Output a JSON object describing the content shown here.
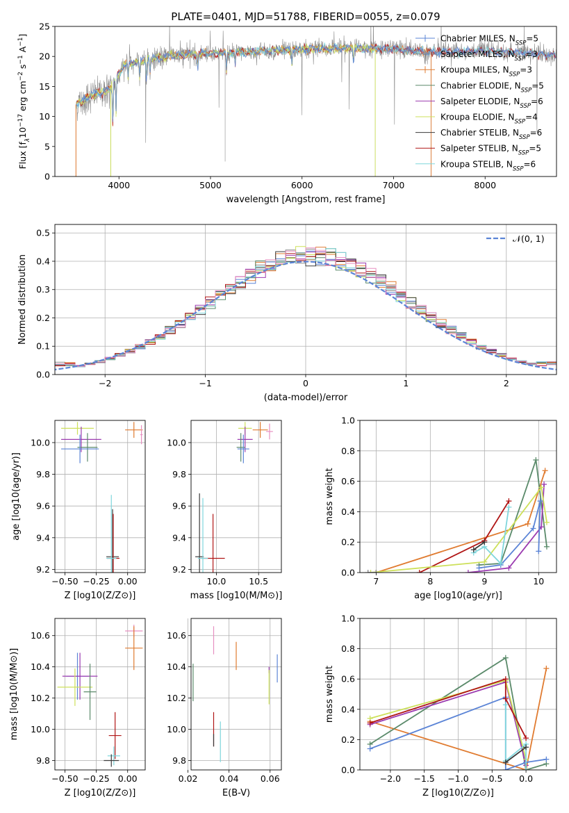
{
  "figure_title": "PLATE=0401, MJD=51788, FIBERID=0055, z=0.079",
  "colors": {
    "blue": "#5b84d6",
    "orange": "#e07b30",
    "gray": "#8a8a8a",
    "green": "#5a8a6a",
    "purple": "#9b3bb0",
    "lime": "#cde05a",
    "dark": "#3a3a3a",
    "red": "#b01515",
    "cyan": "#7fd6dc",
    "pink": "#e78fc0"
  },
  "chart_data": [
    {
      "id": "spectrum",
      "type": "line",
      "xlabel": "wavelength [Angstrom, rest frame]",
      "ylabel": "Flux [f",
      "ylabel_parts": [
        "Flux [f",
        "λ",
        "10",
        "−17",
        " erg cm",
        "−2",
        " s",
        "−1",
        " A",
        "−1",
        "]"
      ],
      "xlim": [
        3300,
        8780
      ],
      "ylim": [
        0,
        25
      ],
      "xticks": [
        4000,
        5000,
        6000,
        7000,
        8000
      ],
      "yticks": [
        0,
        5,
        10,
        15,
        20,
        25
      ],
      "continuum": [
        [
          3530,
          12.0
        ],
        [
          3700,
          13.5
        ],
        [
          3900,
          14.5
        ],
        [
          4050,
          18.5
        ],
        [
          4300,
          19.5
        ],
        [
          4600,
          20.2
        ],
        [
          5000,
          20.5
        ],
        [
          5500,
          20.8
        ],
        [
          6000,
          21.2
        ],
        [
          6500,
          21.4
        ],
        [
          7000,
          21.2
        ],
        [
          7400,
          20.7
        ],
        [
          7700,
          20.8
        ],
        [
          8000,
          20.9
        ],
        [
          8400,
          20.6
        ],
        [
          8780,
          20.2
        ]
      ],
      "absorption_lines": [
        [
          3933,
          7
        ],
        [
          3968,
          6
        ],
        [
          4101,
          2.5
        ],
        [
          4226,
          3
        ],
        [
          4300,
          4
        ],
        [
          4340,
          2.5
        ],
        [
          4861,
          2
        ],
        [
          5175,
          3.5
        ],
        [
          5270,
          2
        ],
        [
          5890,
          2.5
        ],
        [
          6563,
          2.5
        ]
      ],
      "legend": [
        {
          "label": "Chabrier MILES, N",
          "sub": "SSP",
          "suffix": "=5",
          "color": "blue"
        },
        {
          "label": "Salpeter MILES, N",
          "sub": "SSP",
          "suffix": "=3",
          "color": "gray"
        },
        {
          "label": "Kroupa MILES, N",
          "sub": "SSP",
          "suffix": "=3",
          "color": "orange"
        },
        {
          "label": "Chabrier ELODIE, N",
          "sub": "SSP",
          "suffix": "=5",
          "color": "green"
        },
        {
          "label": "Salpeter ELODIE, N",
          "sub": "SSP",
          "suffix": "=6",
          "color": "purple"
        },
        {
          "label": "Kroupa ELODIE, N",
          "sub": "SSP",
          "suffix": "=4",
          "color": "lime"
        },
        {
          "label": "Chabrier STELIB, N",
          "sub": "SSP",
          "suffix": "=6",
          "color": "dark"
        },
        {
          "label": "Salpeter STELIB, N",
          "sub": "SSP",
          "suffix": "=5",
          "color": "red"
        },
        {
          "label": "Kroupa STELIB, N",
          "sub": "SSP",
          "suffix": "=6",
          "color": "cyan"
        }
      ]
    },
    {
      "id": "residuals",
      "type": "histogram",
      "xlabel": "(data-model)/error",
      "ylabel": "Normed distribution",
      "xlim": [
        -2.5,
        2.5
      ],
      "ylim": [
        0,
        0.53
      ],
      "xticks": [
        -2,
        -1,
        0,
        1,
        2
      ],
      "yticks": [
        0.0,
        0.1,
        0.2,
        0.3,
        0.4,
        0.5
      ],
      "bin_width": 0.1,
      "reference_label": "𝒩(0, 1)",
      "reference_color": "blue",
      "series_colors": [
        "blue",
        "gray",
        "orange",
        "green",
        "purple",
        "lime",
        "dark",
        "red",
        "cyan",
        "pink"
      ]
    },
    {
      "id": "age_vs_Z",
      "type": "errorbar",
      "xlabel": "Z [log10(Z/Z⊙)]",
      "ylabel": "age  [log10(age/yr)]",
      "xlim": [
        -0.58,
        0.14
      ],
      "ylim": [
        9.18,
        10.14
      ],
      "xticks": [
        -0.5,
        -0.25,
        0.0
      ],
      "xticklabels": [
        "−0.50",
        "−0.25",
        "0.00"
      ],
      "yticks": [
        9.2,
        9.4,
        9.6,
        9.8,
        10.0
      ],
      "points": [
        {
          "x": -0.4,
          "y": 10.09,
          "xerr": 0.13,
          "yerr": 0.04,
          "color": "lime"
        },
        {
          "x": 0.05,
          "y": 10.08,
          "xerr": 0.07,
          "yerr": 0.05,
          "color": "orange"
        },
        {
          "x": 0.11,
          "y": 10.05,
          "xerr": 0.01,
          "yerr": 0.06,
          "color": "pink"
        },
        {
          "x": -0.37,
          "y": 10.02,
          "xerr": 0.16,
          "yerr": 0.08,
          "color": "purple"
        },
        {
          "x": -0.32,
          "y": 9.97,
          "xerr": 0.08,
          "yerr": 0.09,
          "color": "green"
        },
        {
          "x": -0.38,
          "y": 9.96,
          "xerr": 0.15,
          "yerr": 0.09,
          "color": "blue"
        },
        {
          "x": -0.12,
          "y": 9.28,
          "xerr": 0.05,
          "yerr": 0.3,
          "color": "dark"
        },
        {
          "x": -0.115,
          "y": 9.27,
          "xerr": 0.05,
          "yerr": 0.28,
          "color": "red"
        },
        {
          "x": -0.13,
          "y": 9.27,
          "xerr": 0.04,
          "yerr": 0.4,
          "color": "cyan"
        }
      ]
    },
    {
      "id": "age_vs_mass",
      "type": "errorbar",
      "xlabel": "mass [log10(M/M⊙)]",
      "ylabel": "",
      "xlim": [
        9.7,
        10.77
      ],
      "ylim": [
        9.18,
        10.14
      ],
      "xticks": [
        10.0,
        10.5
      ],
      "yticks": [
        9.2,
        9.4,
        9.6,
        9.8,
        10.0
      ],
      "points": [
        {
          "x": 10.34,
          "y": 10.09,
          "xerr": 0.08,
          "yerr": 0.04,
          "color": "lime"
        },
        {
          "x": 10.52,
          "y": 10.08,
          "xerr": 0.09,
          "yerr": 0.05,
          "color": "orange"
        },
        {
          "x": 10.63,
          "y": 10.07,
          "xerr": 0.04,
          "yerr": 0.05,
          "color": "pink"
        },
        {
          "x": 10.34,
          "y": 10.02,
          "xerr": 0.09,
          "yerr": 0.08,
          "color": "purple"
        },
        {
          "x": 10.29,
          "y": 9.97,
          "xerr": 0.05,
          "yerr": 0.09,
          "color": "green"
        },
        {
          "x": 10.32,
          "y": 9.96,
          "xerr": 0.07,
          "yerr": 0.09,
          "color": "blue"
        },
        {
          "x": 9.8,
          "y": 9.28,
          "xerr": 0.05,
          "yerr": 0.4,
          "color": "dark"
        },
        {
          "x": 9.96,
          "y": 9.27,
          "xerr": 0.14,
          "yerr": 0.28,
          "color": "red"
        },
        {
          "x": 9.84,
          "y": 9.27,
          "xerr": 0.06,
          "yerr": 0.38,
          "color": "cyan"
        }
      ]
    },
    {
      "id": "weight_vs_age",
      "type": "line",
      "xlabel": "age  [log10(age/yr)]",
      "ylabel": "mass weight",
      "xlim": [
        6.7,
        10.33
      ],
      "ylim": [
        0,
        1.0
      ],
      "xticks": [
        7,
        8,
        9,
        10
      ],
      "yticks": [
        0.0,
        0.2,
        0.4,
        0.6,
        0.8,
        1.0
      ],
      "series": [
        {
          "color": "orange",
          "points": [
            [
              7.0,
              0.0
            ],
            [
              9.8,
              0.32
            ],
            [
              10.12,
              0.67
            ]
          ]
        },
        {
          "color": "red",
          "points": [
            [
              7.8,
              0.0
            ],
            [
              9.0,
              0.21
            ],
            [
              9.45,
              0.47
            ]
          ]
        },
        {
          "color": "green",
          "points": [
            [
              8.9,
              0.05
            ],
            [
              9.3,
              0.06
            ],
            [
              9.95,
              0.74
            ],
            [
              10.15,
              0.17
            ]
          ]
        },
        {
          "color": "purple",
          "points": [
            [
              8.7,
              0.0
            ],
            [
              9.45,
              0.03
            ],
            [
              10.05,
              0.3
            ],
            [
              10.1,
              0.58
            ]
          ]
        },
        {
          "color": "lime",
          "points": [
            [
              6.9,
              0.0
            ],
            [
              9.0,
              0.07
            ],
            [
              10.05,
              0.56
            ],
            [
              10.15,
              0.33
            ]
          ]
        },
        {
          "color": "blue",
          "points": [
            [
              8.9,
              0.03
            ],
            [
              9.3,
              0.05
            ],
            [
              9.9,
              0.29
            ],
            [
              10.03,
              0.47
            ],
            [
              10.0,
              0.14
            ]
          ]
        },
        {
          "color": "cyan",
          "points": [
            [
              8.8,
              0.13
            ],
            [
              9.0,
              0.17
            ],
            [
              9.3,
              0.06
            ],
            [
              9.45,
              0.43
            ]
          ]
        },
        {
          "color": "dark",
          "points": [
            [
              8.8,
              0.15
            ],
            [
              9.0,
              0.2
            ]
          ]
        },
        {
          "color": "gray",
          "points": [
            [
              6.85,
              0.0
            ],
            [
              7.0,
              0.0
            ]
          ]
        }
      ]
    },
    {
      "id": "mass_vs_Z",
      "type": "errorbar",
      "xlabel": "Z [log10(Z/Z⊙)]",
      "ylabel": "mass [log10(M/M⊙)]",
      "xlim": [
        -0.58,
        0.14
      ],
      "ylim": [
        9.74,
        10.71
      ],
      "xticks": [
        -0.5,
        -0.25,
        0.0
      ],
      "xticklabels": [
        "−0.50",
        "−0.25",
        "0.00"
      ],
      "yticks": [
        9.8,
        10.0,
        10.2,
        10.4,
        10.6
      ],
      "points": [
        {
          "x": 0.05,
          "y": 10.63,
          "xerr": 0.07,
          "yerr": 0.04,
          "color": "pink"
        },
        {
          "x": 0.05,
          "y": 10.52,
          "xerr": 0.07,
          "yerr": 0.14,
          "color": "orange"
        },
        {
          "x": -0.4,
          "y": 10.34,
          "xerr": 0.09,
          "yerr": 0.15,
          "color": "blue"
        },
        {
          "x": -0.38,
          "y": 10.34,
          "xerr": 0.14,
          "yerr": 0.15,
          "color": "purple"
        },
        {
          "x": -0.42,
          "y": 10.27,
          "xerr": 0.14,
          "yerr": 0.12,
          "color": "lime"
        },
        {
          "x": -0.3,
          "y": 10.24,
          "xerr": 0.05,
          "yerr": 0.18,
          "color": "green"
        },
        {
          "x": -0.1,
          "y": 9.96,
          "xerr": 0.05,
          "yerr": 0.15,
          "color": "red"
        },
        {
          "x": -0.11,
          "y": 9.83,
          "xerr": 0.05,
          "yerr": 0.06,
          "color": "cyan"
        },
        {
          "x": -0.13,
          "y": 9.8,
          "xerr": 0.06,
          "yerr": 0.04,
          "color": "dark"
        }
      ]
    },
    {
      "id": "mass_vs_EBV",
      "type": "errorbar",
      "xlabel": "E(B-V)",
      "ylabel": "",
      "xlim": [
        0.0215,
        0.0655
      ],
      "ylim": [
        9.74,
        10.71
      ],
      "xticks": [
        0.02,
        0.04,
        0.06
      ],
      "xticklabels": [
        "0.02",
        "0.04",
        "0.06"
      ],
      "yticks": [
        9.8,
        10.0,
        10.2,
        10.4,
        10.6
      ],
      "points": [
        {
          "x": 0.0325,
          "y": 10.57,
          "xerr": 0,
          "yerr": 0.09,
          "color": "pink"
        },
        {
          "x": 0.0435,
          "y": 10.47,
          "xerr": 0,
          "yerr": 0.09,
          "color": "orange"
        },
        {
          "x": 0.0635,
          "y": 10.39,
          "xerr": 0,
          "yerr": 0.09,
          "color": "blue"
        },
        {
          "x": 0.0595,
          "y": 10.38,
          "xerr": 0,
          "yerr": 0.02,
          "color": "purple"
        },
        {
          "x": 0.0595,
          "y": 10.27,
          "xerr": 0,
          "yerr": 0.11,
          "color": "lime"
        },
        {
          "x": 0.0225,
          "y": 10.3,
          "xerr": 0,
          "yerr": 0.12,
          "color": "green"
        },
        {
          "x": 0.0325,
          "y": 10.0,
          "xerr": 0,
          "yerr": 0.11,
          "color": "red"
        },
        {
          "x": 0.0358,
          "y": 9.92,
          "xerr": 0,
          "yerr": 0.13,
          "color": "cyan"
        },
        {
          "x": 0.0325,
          "y": 9.93,
          "xerr": 0,
          "yerr": 0.04,
          "color": "dark"
        }
      ]
    },
    {
      "id": "weight_vs_Z",
      "type": "line",
      "xlabel": "Z [log10(Z/Z⊙)]",
      "ylabel": "mass weight",
      "xlim": [
        -2.45,
        0.45
      ],
      "ylim": [
        0,
        1.0
      ],
      "xticks": [
        -2.0,
        -1.5,
        -1.0,
        -0.5,
        0.0
      ],
      "xticklabels": [
        "−2.0",
        "−1.5",
        "−1.0",
        "−0.5",
        "0.0"
      ],
      "yticks": [
        0.0,
        0.2,
        0.4,
        0.6,
        0.8,
        1.0
      ],
      "series": [
        {
          "color": "orange",
          "points": [
            [
              -2.3,
              0.32
            ],
            [
              0.0,
              0.0
            ],
            [
              0.3,
              0.67
            ]
          ]
        },
        {
          "color": "green",
          "points": [
            [
              -2.3,
              0.17
            ],
            [
              -0.3,
              0.74
            ],
            [
              0.0,
              0.0
            ],
            [
              0.3,
              0.04
            ]
          ]
        },
        {
          "color": "purple",
          "points": [
            [
              -2.3,
              0.3
            ],
            [
              -0.3,
              0.58
            ],
            [
              0.0,
              0.03
            ]
          ]
        },
        {
          "color": "lime",
          "points": [
            [
              -2.3,
              0.34
            ],
            [
              -0.3,
              0.59
            ],
            [
              0.0,
              0.07
            ]
          ]
        },
        {
          "color": "blue",
          "points": [
            [
              -2.3,
              0.14
            ],
            [
              -0.3,
              0.48
            ],
            [
              -0.3,
              0.0
            ],
            [
              0.0,
              0.05
            ],
            [
              0.3,
              0.07
            ]
          ]
        },
        {
          "color": "red",
          "points": [
            [
              -2.3,
              0.31
            ],
            [
              -0.3,
              0.6
            ],
            [
              -0.3,
              0.47
            ],
            [
              0.0,
              0.21
            ]
          ]
        },
        {
          "color": "cyan",
          "points": [
            [
              -0.3,
              0.43
            ],
            [
              -0.3,
              0.06
            ],
            [
              0.0,
              0.17
            ],
            [
              0.0,
              0.0
            ]
          ]
        },
        {
          "color": "dark",
          "points": [
            [
              -0.3,
              0.05
            ],
            [
              0.0,
              0.15
            ]
          ]
        }
      ]
    }
  ]
}
